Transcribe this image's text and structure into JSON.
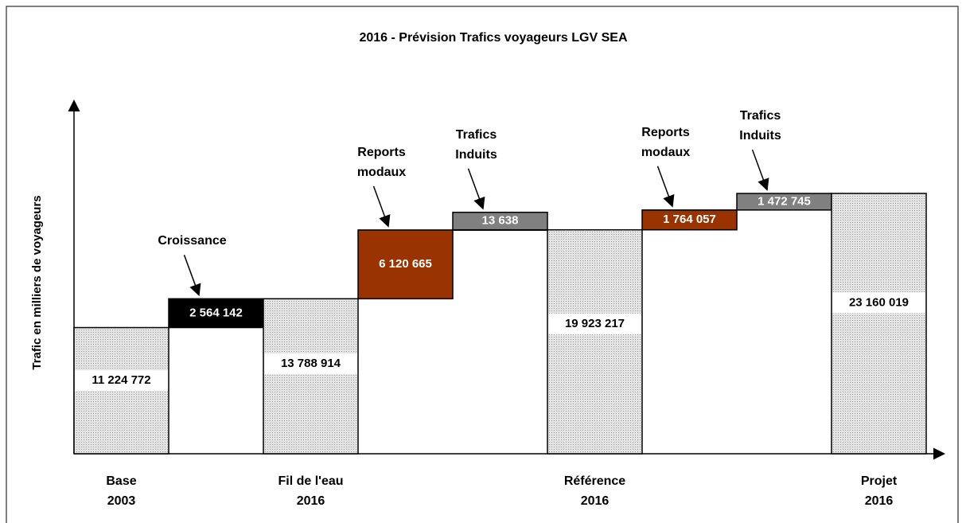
{
  "chart_data": {
    "type": "waterfall",
    "title": "2016 - Prévision Trafics voyageurs LGV SEA",
    "y_label": "Trafic en milliers de voyageurs",
    "categories": [
      "Base\n2003",
      null,
      "Fil de l'eau\n2016",
      null,
      null,
      "Référence\n2016",
      null,
      null,
      "Projet\n2016"
    ],
    "annotations": [
      null,
      "Croissance",
      null,
      "Reports\nmodaux",
      "Trafics\nInduits",
      null,
      "Reports\nmodaux",
      "Trafics\nInduits",
      null
    ],
    "values": [
      11224772,
      2564142,
      13788914,
      6120665,
      13638,
      19923217,
      1764057,
      1472745,
      23160019
    ],
    "value_labels": [
      "11 224 772",
      "2 564 142",
      "13 788 914",
      "6 120 665",
      "13 638",
      "19 923 217",
      "1 764 057",
      "1 472 745",
      "23 160 019"
    ],
    "colors": [
      "#d6d6d6",
      "#000000",
      "#d6d6d6",
      "#993300",
      "#808080",
      "#d6d6d6",
      "#993300",
      "#808080",
      "#d6d6d6"
    ]
  }
}
